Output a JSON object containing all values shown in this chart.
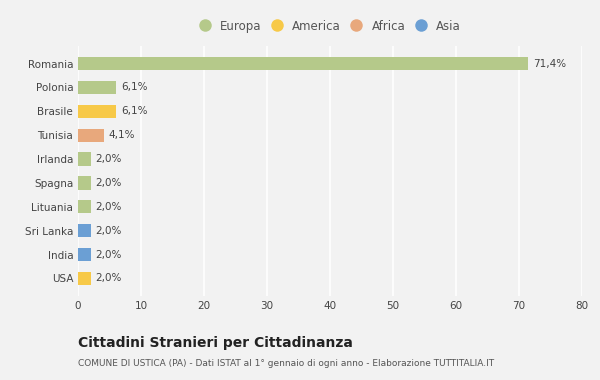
{
  "categories": [
    "Romania",
    "Polonia",
    "Brasile",
    "Tunisia",
    "Irlanda",
    "Spagna",
    "Lituania",
    "Sri Lanka",
    "India",
    "USA"
  ],
  "values": [
    71.4,
    6.1,
    6.1,
    4.1,
    2.0,
    2.0,
    2.0,
    2.0,
    2.0,
    2.0
  ],
  "labels": [
    "71,4%",
    "6,1%",
    "6,1%",
    "4,1%",
    "2,0%",
    "2,0%",
    "2,0%",
    "2,0%",
    "2,0%",
    "2,0%"
  ],
  "colors": [
    "#b5c98a",
    "#b5c98a",
    "#f7c948",
    "#e8a87c",
    "#b5c98a",
    "#b5c98a",
    "#b5c98a",
    "#6b9fd4",
    "#6b9fd4",
    "#f7c948"
  ],
  "legend": [
    {
      "label": "Europa",
      "color": "#b5c98a"
    },
    {
      "label": "America",
      "color": "#f7c948"
    },
    {
      "label": "Africa",
      "color": "#e8a87c"
    },
    {
      "label": "Asia",
      "color": "#6b9fd4"
    }
  ],
  "xlim": [
    0,
    80
  ],
  "xticks": [
    0,
    10,
    20,
    30,
    40,
    50,
    60,
    70,
    80
  ],
  "title": "Cittadini Stranieri per Cittadinanza",
  "subtitle": "COMUNE DI USTICA (PA) - Dati ISTAT al 1° gennaio di ogni anno - Elaborazione TUTTITALIA.IT",
  "bg_color": "#f2f2f2",
  "grid_color": "#ffffff",
  "bar_height": 0.55
}
